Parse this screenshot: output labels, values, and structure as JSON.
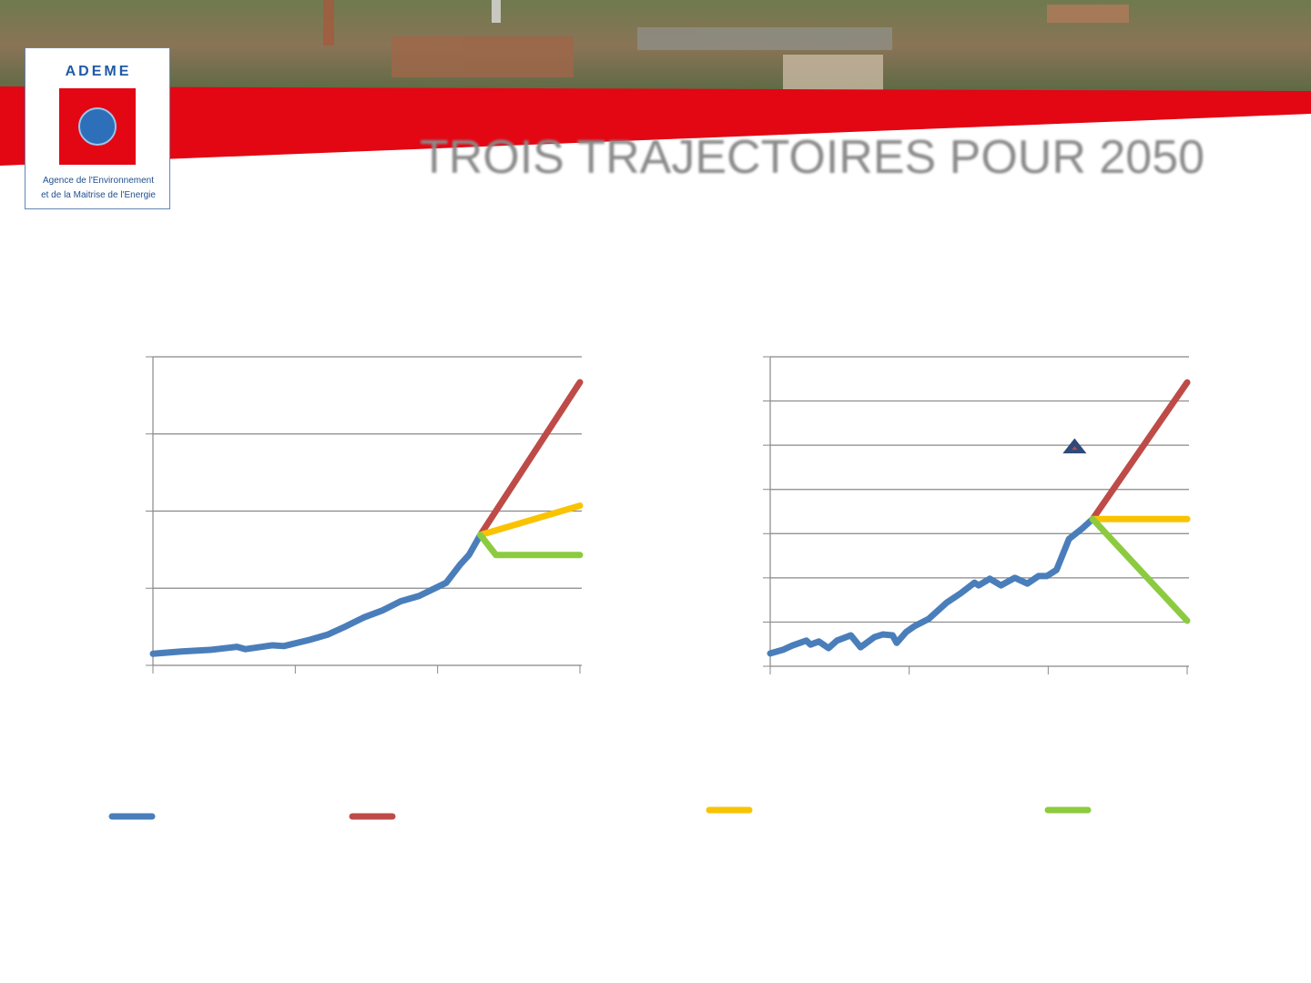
{
  "header": {
    "logo": "ADEME",
    "logo_caption": [
      "Agence de l'Environnement",
      "et de la Maitrise de l'Energie"
    ],
    "title": "TROIS TRAJECTOIRES POUR 2050"
  },
  "chart_data": [
    {
      "type": "line",
      "xlim": [
        0,
        3
      ],
      "xticks": [
        0,
        1,
        2,
        3
      ],
      "ylim": [
        0,
        4
      ],
      "yticks": [
        0,
        1,
        2,
        3,
        4
      ],
      "grid": true,
      "series": [
        {
          "color": "#4a7ebb",
          "x": [
            0,
            0.2,
            0.4,
            0.59,
            0.65,
            0.84,
            0.92,
            1.1,
            1.23,
            1.36,
            1.48,
            1.61,
            1.74,
            1.87,
            2.06,
            2.16,
            2.22,
            2.3
          ],
          "values": [
            0.15,
            0.18,
            0.2,
            0.24,
            0.21,
            0.26,
            0.25,
            0.33,
            0.4,
            0.51,
            0.62,
            0.71,
            0.83,
            0.9,
            1.07,
            1.31,
            1.43,
            1.69
          ]
        },
        {
          "color": "#be4b48",
          "x": [
            2.3,
            3
          ],
          "values": [
            1.69,
            3.67
          ]
        },
        {
          "color": "#f9c300",
          "x": [
            2.3,
            3
          ],
          "values": [
            1.69,
            2.07
          ]
        },
        {
          "color": "#8ccb3f",
          "x": [
            2.3,
            2.41,
            3
          ],
          "values": [
            1.69,
            1.43,
            1.43
          ]
        }
      ]
    },
    {
      "type": "line",
      "xlim": [
        0,
        3
      ],
      "xticks": [
        0,
        1,
        2,
        3
      ],
      "ylim": [
        0,
        7
      ],
      "yticks": [
        0,
        1,
        2,
        3,
        4,
        5,
        6,
        7
      ],
      "grid": true,
      "series": [
        {
          "color": "#4a7ebb",
          "x": [
            0,
            0.09,
            0.16,
            0.26,
            0.29,
            0.35,
            0.42,
            0.48,
            0.58,
            0.65,
            0.75,
            0.81,
            0.88,
            0.91,
            0.98,
            1.04,
            1.14,
            1.27,
            1.37,
            1.47,
            1.5,
            1.58,
            1.66,
            1.76,
            1.85,
            1.93,
            1.99,
            2.06,
            2.15,
            2.25,
            2.32
          ],
          "values": [
            0.29,
            0.37,
            0.47,
            0.58,
            0.49,
            0.56,
            0.41,
            0.58,
            0.7,
            0.43,
            0.66,
            0.72,
            0.7,
            0.53,
            0.78,
            0.91,
            1.07,
            1.44,
            1.65,
            1.89,
            1.83,
            1.98,
            1.83,
            2.0,
            1.87,
            2.04,
            2.04,
            2.18,
            2.88,
            3.13,
            3.33
          ]
        },
        {
          "color": "#be4b48",
          "x": [
            2.32,
            3
          ],
          "values": [
            3.33,
            6.42
          ]
        },
        {
          "color": "#f9c300",
          "x": [
            2.32,
            3
          ],
          "values": [
            3.33,
            3.33
          ]
        },
        {
          "color": "#8ccb3f",
          "x": [
            2.32,
            3
          ],
          "values": [
            3.33,
            1.03
          ]
        },
        {
          "color": "#2e4a7a",
          "marker": "triangle",
          "x": [
            2.19
          ],
          "values": [
            4.96
          ]
        }
      ]
    }
  ]
}
